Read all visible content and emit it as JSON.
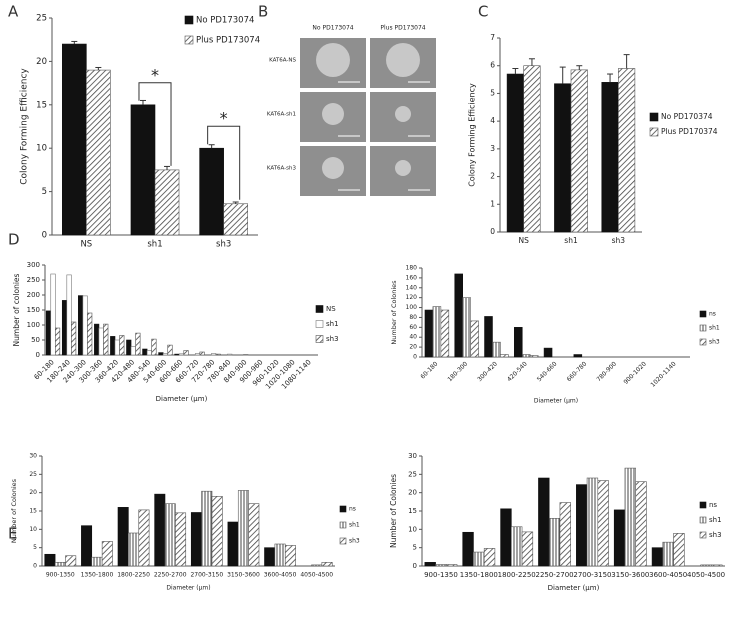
{
  "chart_data": [
    {
      "type": "bar",
      "panel": "A",
      "ylabel": "Colony Forming Efficiency",
      "categories": [
        "NS",
        "sh1",
        "sh3"
      ],
      "ylim": [
        0,
        25
      ],
      "yticks": [
        0,
        5,
        10,
        15,
        20,
        25
      ],
      "legend": "upper right",
      "annotations": [
        "*",
        "*"
      ],
      "series": [
        {
          "name": "No PD173074",
          "color": "#111111",
          "fill": "solid",
          "values": [
            22,
            15,
            10
          ],
          "errors": [
            0.3,
            0.5,
            0.4
          ]
        },
        {
          "name": "Plus PD173074",
          "color": "#555555",
          "fill": "hatch",
          "values": [
            19,
            7.5,
            3.6
          ],
          "errors": [
            0.3,
            0.4,
            0.2
          ]
        }
      ]
    },
    {
      "type": "bar",
      "panel": "C",
      "ylabel": "Colony Forming Efficiency",
      "categories": [
        "NS",
        "sh1",
        "sh3"
      ],
      "ylim": [
        0,
        7
      ],
      "yticks": [
        0,
        1,
        2,
        3,
        4,
        5,
        6,
        7
      ],
      "legend": "right",
      "series": [
        {
          "name": "No PD170374",
          "color": "#111111",
          "fill": "solid",
          "values": [
            5.7,
            5.35,
            5.4
          ],
          "errors": [
            0.2,
            0.6,
            0.3
          ]
        },
        {
          "name": "Plus PD170374",
          "color": "#555555",
          "fill": "hatch",
          "values": [
            6.0,
            5.85,
            5.9
          ],
          "errors": [
            0.25,
            0.15,
            0.5
          ]
        }
      ]
    },
    {
      "type": "bar",
      "panel": "D",
      "ylabel": "Number of colonies",
      "xlabel": "Diameter (μm)",
      "categories": [
        "60-180",
        "180-240",
        "240-300",
        "300-360",
        "360-420",
        "420-480",
        "480-540",
        "540-600",
        "600-660",
        "660-720",
        "720-780",
        "780-840",
        "840-900",
        "900-960",
        "960-1020",
        "1020-1080",
        "1080-1140"
      ],
      "ylim": [
        0,
        300
      ],
      "yticks": [
        0,
        50,
        100,
        150,
        200,
        250,
        300
      ],
      "legend": "right",
      "series": [
        {
          "name": "NS",
          "color": "#111111",
          "fill": "solid",
          "values": [
            147,
            182,
            198,
            103,
            62,
            50,
            20,
            8,
            3,
            0,
            0,
            0,
            0,
            0,
            0,
            0,
            0
          ]
        },
        {
          "name": "sh1",
          "color": "#777777",
          "fill": "white",
          "values": [
            270,
            267,
            197,
            90,
            50,
            28,
            15,
            5,
            4,
            5,
            5,
            3,
            2,
            0,
            0,
            0,
            0
          ]
        },
        {
          "name": "sh3",
          "color": "#555555",
          "fill": "hatch",
          "values": [
            90,
            110,
            140,
            103,
            65,
            73,
            53,
            33,
            15,
            10,
            3,
            0,
            0,
            0,
            0,
            0,
            0
          ]
        }
      ]
    },
    {
      "type": "bar",
      "ylabel": "Number of Colonies",
      "xlabel": "Diameter (μm)",
      "categories": [
        "60-180",
        "180-300",
        "300-420",
        "420-540",
        "540-660",
        "660-780",
        "780-900",
        "900-1020",
        "1020-1140"
      ],
      "ylim": [
        0,
        180
      ],
      "yticks": [
        0,
        20,
        40,
        60,
        80,
        100,
        120,
        140,
        160,
        180
      ],
      "legend": "right",
      "series": [
        {
          "name": "ns",
          "color": "#111111",
          "fill": "solid",
          "values": [
            95,
            168,
            82,
            60,
            18,
            5,
            0,
            0,
            0
          ]
        },
        {
          "name": "sh1",
          "color": "#555555",
          "fill": "vstripe",
          "values": [
            102,
            120,
            30,
            5,
            0,
            0,
            0,
            0,
            0
          ]
        },
        {
          "name": "sh3",
          "color": "#555555",
          "fill": "hatch",
          "values": [
            95,
            73,
            5,
            3,
            0,
            0,
            0,
            0,
            0
          ]
        }
      ]
    },
    {
      "type": "bar",
      "panel": "E",
      "ylabel": "Number of Colonies",
      "xlabel": "Diameter (μm)",
      "categories": [
        "900-1350",
        "1350-1800",
        "1800-2250",
        "2250-2700",
        "2700-3150",
        "3150-3600",
        "3600-4050",
        "4050-4500"
      ],
      "ylim": [
        0,
        30
      ],
      "yticks": [
        0,
        5,
        10,
        15,
        20,
        25,
        30
      ],
      "legend": "right",
      "series": [
        {
          "name": "ns",
          "color": "#111111",
          "fill": "solid",
          "values": [
            3.2,
            11,
            16,
            19.6,
            14.6,
            12,
            5,
            0
          ]
        },
        {
          "name": "sh1",
          "color": "#555555",
          "fill": "vstripe",
          "values": [
            1,
            2.4,
            9,
            17,
            20.4,
            20.6,
            6,
            0.3
          ]
        },
        {
          "name": "sh3",
          "color": "#555555",
          "fill": "hatch",
          "values": [
            2.8,
            6.7,
            15.3,
            14.5,
            19,
            17,
            5.6,
            1
          ]
        }
      ]
    },
    {
      "type": "bar",
      "ylabel": "Number of Colonies",
      "xlabel": "Diameter (μm)",
      "categories": [
        "900-1350",
        "1350-1800",
        "1800-2250",
        "2250-2700",
        "2700-3150",
        "3150-3600",
        "3600-4050",
        "4050-4500"
      ],
      "ylim": [
        0,
        30
      ],
      "yticks": [
        0,
        5,
        10,
        15,
        20,
        25,
        30
      ],
      "legend": "right",
      "series": [
        {
          "name": "ns",
          "color": "#111111",
          "fill": "solid",
          "values": [
            1,
            9.2,
            15.6,
            24,
            22.2,
            15.3,
            5,
            0
          ]
        },
        {
          "name": "sh1",
          "color": "#555555",
          "fill": "vstripe",
          "values": [
            0.4,
            3.8,
            10.7,
            13,
            24,
            26.7,
            6.5,
            0.3
          ]
        },
        {
          "name": "sh3",
          "color": "#555555",
          "fill": "hatch",
          "values": [
            0.4,
            4.8,
            9.3,
            17.3,
            23.3,
            23,
            8.9,
            0.3
          ]
        }
      ]
    }
  ],
  "image_panel": {
    "panel": "B",
    "columns": [
      "No PD173074",
      "Plus PD173074"
    ],
    "rows": [
      "KAT6A-NS",
      "KAT6A-sh1",
      "KAT6A-sh3"
    ]
  }
}
